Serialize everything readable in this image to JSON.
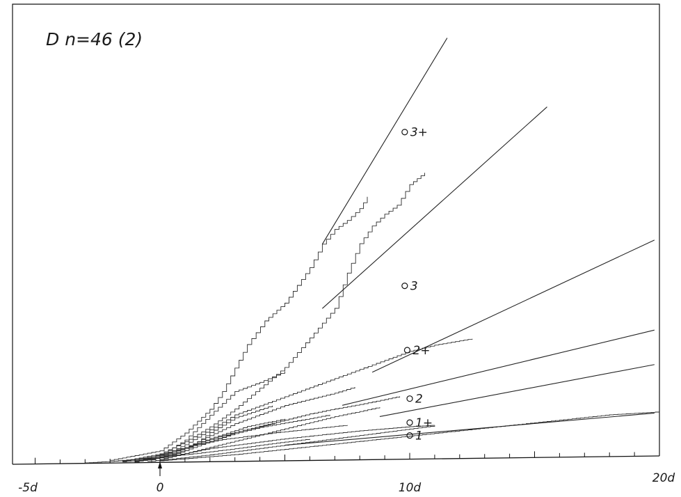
{
  "chart_data": {
    "type": "line",
    "title": "D  n=46 (2)",
    "x_tick_labels": [
      "-5d",
      "0",
      "10d",
      "20d"
    ],
    "x_ticks": [
      -5,
      0,
      10,
      20
    ],
    "xlim": [
      -5.5,
      20
    ],
    "event_marker_x": 0,
    "reference_lines": [
      {
        "name": "3+",
        "x": [
          6.5,
          11.5
        ],
        "y": [
          37,
          72
        ]
      },
      {
        "name": "3",
        "x": [
          6.5,
          15.5
        ],
        "y": [
          26,
          60
        ]
      },
      {
        "name": "2+",
        "x": [
          8.5,
          19.8
        ],
        "y": [
          15,
          37
        ]
      },
      {
        "name": "2",
        "x": [
          7.3,
          19.8
        ],
        "y": [
          9.4,
          21.6
        ]
      },
      {
        "name": "1+",
        "x": [
          8.8,
          19.8
        ],
        "y": [
          7.4,
          15.7
        ]
      },
      {
        "name": "1",
        "x": [
          5,
          19.8
        ],
        "y": [
          2.7,
          7.4
        ]
      }
    ],
    "point_labels": [
      {
        "label": "3+",
        "x": 9.8,
        "y": 56
      },
      {
        "label": "3",
        "x": 9.8,
        "y": 29.7
      },
      {
        "label": "2+",
        "x": 9.9,
        "y": 18.7
      },
      {
        "label": "2",
        "x": 10.0,
        "y": 10.4
      },
      {
        "label": "1+",
        "x": 10.0,
        "y": 6.3
      },
      {
        "label": "1",
        "x": 10.0,
        "y": 4.1
      }
    ],
    "series": [
      {
        "x": [
          -2,
          0,
          1,
          2,
          2.5,
          3,
          3.5,
          4.2,
          5,
          5.5,
          6,
          6.5,
          7,
          7.5,
          8,
          8.3
        ],
        "y": [
          0.5,
          2,
          5,
          9,
          12,
          16,
          20,
          24,
          27,
          30,
          33,
          37,
          39.5,
          41,
          43,
          45
        ]
      },
      {
        "x": [
          -1.5,
          0,
          1,
          2,
          3,
          4,
          5,
          6,
          7,
          7.5,
          8,
          8.5,
          9,
          9.5,
          10,
          10.6
        ],
        "y": [
          0.3,
          1.5,
          3.5,
          6,
          9,
          12.5,
          16,
          21,
          26,
          32,
          37,
          40,
          42,
          43.5,
          47,
          49
        ]
      },
      {
        "x": [
          -1.5,
          0,
          1,
          2,
          3,
          4,
          5
        ],
        "y": [
          0.3,
          1.2,
          3.8,
          8,
          12,
          13.5,
          15.3
        ]
      },
      {
        "x": [
          -1,
          0,
          1,
          2,
          3,
          4,
          5,
          6,
          7,
          8,
          9,
          10,
          11,
          12.5
        ],
        "y": [
          0.2,
          1,
          3,
          5.5,
          8,
          9.5,
          11,
          12.5,
          14,
          15.5,
          17,
          18.5,
          19.5,
          20.5
        ]
      },
      {
        "x": [
          -1,
          0,
          1,
          2,
          3,
          4,
          5,
          6,
          7,
          7.8
        ],
        "y": [
          0.2,
          1,
          2.5,
          4.5,
          6.5,
          8,
          9.5,
          10.5,
          11.5,
          12.5
        ]
      },
      {
        "x": [
          -1,
          0,
          1,
          2,
          3,
          4,
          5,
          6,
          7,
          8,
          9,
          9.6
        ],
        "y": [
          0.2,
          0.8,
          2,
          3.5,
          5,
          6,
          7,
          8,
          8.8,
          9.5,
          10.3,
          10.8
        ]
      },
      {
        "x": [
          -0.5,
          0,
          1,
          2,
          3,
          4,
          5,
          6,
          7,
          8,
          8.8
        ],
        "y": [
          0.1,
          0.5,
          1.5,
          2.5,
          3.5,
          4.5,
          5.5,
          6.5,
          7.5,
          8.3,
          9
        ]
      },
      {
        "x": [
          -1,
          0,
          1,
          2,
          3,
          4,
          5,
          6,
          6.8
        ],
        "y": [
          0.2,
          1,
          2.5,
          3.5,
          4.8,
          5.8,
          6.5,
          7.2,
          7.8
        ]
      },
      {
        "x": [
          -2,
          -0.5,
          0.5,
          1.5,
          2.5,
          3.5,
          4.5,
          5.5,
          6.5,
          7.5
        ],
        "y": [
          0.3,
          0.8,
          2,
          3,
          3.8,
          4.3,
          4.8,
          5.2,
          5.6,
          6
        ]
      },
      {
        "x": [
          0,
          1,
          2,
          3,
          4,
          5,
          6,
          7,
          8,
          9,
          10,
          11,
          12,
          13,
          14,
          15,
          16,
          17,
          18,
          19,
          20
        ],
        "y": [
          0.3,
          0.6,
          0.9,
          1.2,
          1.6,
          2,
          2.4,
          2.8,
          3.2,
          3.6,
          4,
          4.4,
          4.8,
          5.2,
          5.6,
          6,
          6.4,
          6.8,
          7.2,
          7.4,
          7.6
        ]
      },
      {
        "x": [
          -1.5,
          0,
          1,
          2,
          3,
          4,
          5,
          6,
          7,
          8,
          9,
          10,
          11
        ],
        "y": [
          0.2,
          0.8,
          1.5,
          2.3,
          2.8,
          3.3,
          3.8,
          4.2,
          4.6,
          5,
          5.3,
          5.6,
          5.8
        ]
      },
      {
        "x": [
          0,
          2,
          4,
          6,
          8,
          10,
          11
        ],
        "y": [
          0.4,
          1.2,
          2.2,
          3.2,
          4.2,
          5.2,
          5.7
        ]
      },
      {
        "x": [
          0,
          1,
          2,
          3,
          4.5
        ],
        "y": [
          0.5,
          2,
          5,
          7.5,
          9.5
        ]
      },
      {
        "x": [
          -0.5,
          0.5,
          1.5,
          2.5,
          3.5,
          4.6
        ],
        "y": [
          0.3,
          1.5,
          3.2,
          4.5,
          5.5,
          6.5
        ]
      },
      {
        "x": [
          -3,
          -1.5,
          0,
          1.5,
          3,
          4.5,
          6
        ],
        "y": [
          0.1,
          0.4,
          0.9,
          1.5,
          2.2,
          3,
          3.7
        ]
      },
      {
        "x": [
          -1,
          0.5,
          2,
          3.5,
          5
        ],
        "y": [
          0.3,
          1.8,
          4,
          6,
          7.2
        ]
      }
    ]
  }
}
